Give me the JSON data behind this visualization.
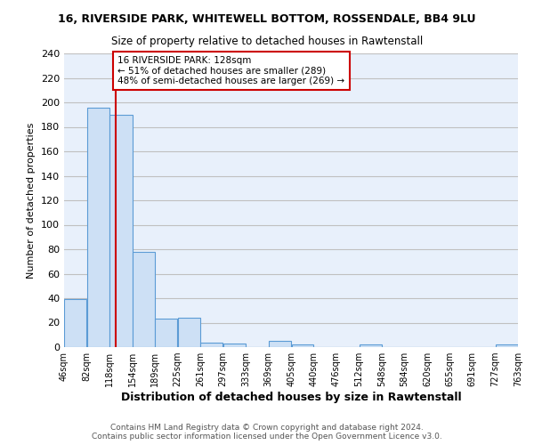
{
  "title": "16, RIVERSIDE PARK, WHITEWELL BOTTOM, ROSSENDALE, BB4 9LU",
  "subtitle": "Size of property relative to detached houses in Rawtenstall",
  "xlabel": "Distribution of detached houses by size in Rawtenstall",
  "ylabel": "Number of detached properties",
  "bar_edges": [
    46,
    82,
    118,
    154,
    189,
    225,
    261,
    297,
    333,
    369,
    405,
    440,
    476,
    512,
    548,
    584,
    620,
    655,
    691,
    727,
    763
  ],
  "bar_heights": [
    39,
    196,
    190,
    78,
    23,
    24,
    4,
    3,
    0,
    5,
    2,
    0,
    0,
    2,
    0,
    0,
    0,
    0,
    0,
    2
  ],
  "bar_color": "#cde0f5",
  "bar_edge_color": "#5b9bd5",
  "grid_color": "#c0c0c0",
  "bg_color": "#ffffff",
  "plot_bg_color": "#e8f0fb",
  "vline_x": 128,
  "vline_color": "#cc0000",
  "annotation_text": "16 RIVERSIDE PARK: 128sqm\n← 51% of detached houses are smaller (289)\n48% of semi-detached houses are larger (269) →",
  "annotation_box_color": "#ffffff",
  "annotation_box_edge": "#cc0000",
  "ylim": [
    0,
    240
  ],
  "yticks": [
    0,
    20,
    40,
    60,
    80,
    100,
    120,
    140,
    160,
    180,
    200,
    220,
    240
  ],
  "tick_labels": [
    "46sqm",
    "82sqm",
    "118sqm",
    "154sqm",
    "189sqm",
    "225sqm",
    "261sqm",
    "297sqm",
    "333sqm",
    "369sqm",
    "405sqm",
    "440sqm",
    "476sqm",
    "512sqm",
    "548sqm",
    "584sqm",
    "620sqm",
    "655sqm",
    "691sqm",
    "727sqm",
    "763sqm"
  ],
  "footer": "Contains HM Land Registry data © Crown copyright and database right 2024.\nContains public sector information licensed under the Open Government Licence v3.0."
}
